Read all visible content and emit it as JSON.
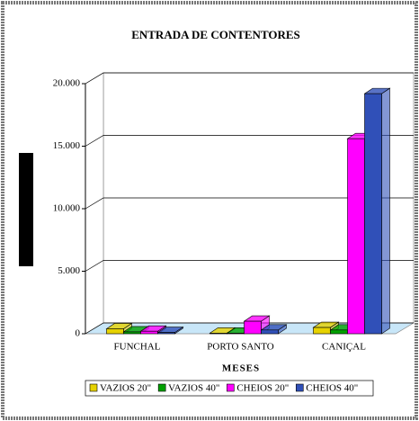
{
  "chart_data": {
    "type": "bar",
    "title": "ENTRADA DE CONTENTORES",
    "x_label": "MESES",
    "categories": [
      "FUNCHAL",
      "PORTO SANTO",
      "CANIÇAL"
    ],
    "series": [
      {
        "name": "VAZIOS 20\"",
        "color": "#e6d200",
        "values": [
          400,
          50,
          500
        ]
      },
      {
        "name": "VAZIOS 40\"",
        "color": "#00a000",
        "values": [
          150,
          50,
          300
        ]
      },
      {
        "name": "CHEIOS 20\"",
        "color": "#ff00ff",
        "values": [
          200,
          1000,
          15600
        ]
      },
      {
        "name": "CHEIOS 40\"",
        "color": "#3050b8",
        "values": [
          100,
          300,
          19200
        ]
      }
    ],
    "ylim": [
      0,
      20000
    ],
    "yticks": [
      0,
      {
        "value": 5000,
        "label": "5.000"
      },
      {
        "value": 10000,
        "label": "10.000"
      },
      {
        "value": 15000,
        "label": "15.000"
      },
      {
        "value": 20000,
        "label": "20.000"
      }
    ],
    "grid": true,
    "legend": "bottom"
  }
}
